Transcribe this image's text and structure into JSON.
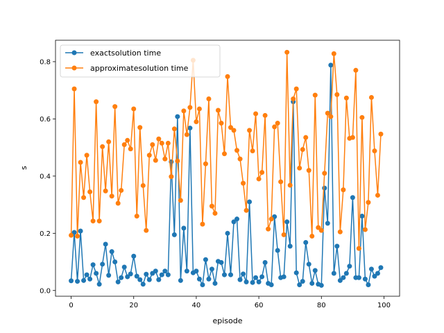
{
  "chart_data": {
    "type": "line",
    "title": "",
    "xlabel": "episode",
    "ylabel": "s",
    "xlim": [
      -5,
      105
    ],
    "ylim": [
      -0.02,
      0.875
    ],
    "xticks": [
      0,
      20,
      40,
      60,
      80,
      100
    ],
    "yticks": [
      0.0,
      0.2,
      0.4,
      0.6,
      0.8
    ],
    "ytick_labels": [
      "0.0",
      "0.2",
      "0.4",
      "0.6",
      "0.8"
    ],
    "grid": false,
    "legend_position": "upper-left",
    "x": [
      0,
      1,
      2,
      3,
      4,
      5,
      6,
      7,
      8,
      9,
      10,
      11,
      12,
      13,
      14,
      15,
      16,
      17,
      18,
      19,
      20,
      21,
      22,
      23,
      24,
      25,
      26,
      27,
      28,
      29,
      30,
      31,
      32,
      33,
      34,
      35,
      36,
      37,
      38,
      39,
      40,
      41,
      42,
      43,
      44,
      45,
      46,
      47,
      48,
      49,
      50,
      51,
      52,
      53,
      54,
      55,
      56,
      57,
      58,
      59,
      60,
      61,
      62,
      63,
      64,
      65,
      66,
      67,
      68,
      69,
      70,
      71,
      72,
      73,
      74,
      75,
      76,
      77,
      78,
      79,
      80,
      81,
      82,
      83,
      84,
      85,
      86,
      87,
      88,
      89,
      90,
      91,
      92,
      93,
      94,
      95,
      96,
      97,
      98,
      99
    ],
    "series": [
      {
        "name": "exactsolution time",
        "color": "#1f77b4",
        "values": [
          0.034,
          0.203,
          0.032,
          0.208,
          0.035,
          0.055,
          0.04,
          0.09,
          0.06,
          0.022,
          0.092,
          0.162,
          0.053,
          0.136,
          0.1,
          0.03,
          0.045,
          0.082,
          0.048,
          0.058,
          0.12,
          0.05,
          0.038,
          0.022,
          0.057,
          0.038,
          0.06,
          0.068,
          0.038,
          0.055,
          0.068,
          0.055,
          0.45,
          0.195,
          0.608,
          0.035,
          0.218,
          0.068,
          0.568,
          0.062,
          0.068,
          0.04,
          0.02,
          0.108,
          0.04,
          0.075,
          0.025,
          0.102,
          0.098,
          0.055,
          0.2,
          0.055,
          0.24,
          0.25,
          0.038,
          0.058,
          0.03,
          0.31,
          0.028,
          0.045,
          0.03,
          0.048,
          0.098,
          0.025,
          0.02,
          0.258,
          0.14,
          0.045,
          0.048,
          0.24,
          0.155,
          0.66,
          0.062,
          0.02,
          0.032,
          0.168,
          0.092,
          0.025,
          0.07,
          0.022,
          0.018,
          0.358,
          0.235,
          0.788,
          0.06,
          0.155,
          0.035,
          0.045,
          0.06,
          0.085,
          0.325,
          0.045,
          0.045,
          0.26,
          0.04,
          0.02,
          0.075,
          0.05,
          0.06,
          0.08
        ]
      },
      {
        "name": "approximatesolution time",
        "color": "#ff7f0e",
        "values": [
          0.193,
          0.705,
          0.19,
          0.448,
          0.325,
          0.473,
          0.345,
          0.243,
          0.66,
          0.243,
          0.503,
          0.348,
          0.52,
          0.33,
          0.643,
          0.305,
          0.35,
          0.51,
          0.525,
          0.495,
          0.635,
          0.26,
          0.57,
          0.367,
          0.21,
          0.473,
          0.51,
          0.455,
          0.53,
          0.515,
          0.46,
          0.515,
          0.398,
          0.565,
          0.453,
          0.315,
          0.628,
          0.545,
          0.64,
          0.805,
          0.59,
          0.635,
          0.232,
          0.443,
          0.67,
          0.295,
          0.27,
          0.63,
          0.585,
          0.478,
          0.748,
          0.57,
          0.56,
          0.49,
          0.46,
          0.375,
          0.28,
          0.56,
          0.488,
          0.618,
          0.39,
          0.413,
          0.612,
          0.215,
          0.25,
          0.572,
          0.585,
          0.38,
          0.195,
          0.833,
          0.368,
          0.67,
          0.705,
          0.428,
          0.493,
          0.535,
          0.42,
          0.19,
          0.683,
          0.22,
          0.21,
          0.41,
          0.62,
          0.608,
          0.828,
          0.685,
          0.205,
          0.352,
          0.673,
          0.532,
          0.535,
          0.77,
          0.147,
          0.605,
          0.213,
          0.308,
          0.675,
          0.488,
          0.333,
          0.547
        ]
      }
    ]
  }
}
